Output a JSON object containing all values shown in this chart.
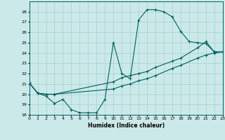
{
  "xlabel": "Humidex (Indice chaleur)",
  "background_color": "#cce9e9",
  "grid_color": "#aad4d4",
  "line_color": "#006060",
  "ylim": [
    18,
    29
  ],
  "xlim": [
    0,
    23
  ],
  "yticks": [
    18,
    19,
    20,
    21,
    22,
    23,
    24,
    25,
    26,
    27,
    28
  ],
  "xticks": [
    0,
    1,
    2,
    3,
    4,
    5,
    6,
    7,
    8,
    9,
    10,
    11,
    12,
    13,
    14,
    15,
    16,
    17,
    18,
    19,
    20,
    21,
    22,
    23
  ],
  "curve1_x": [
    0,
    1,
    2,
    3,
    4,
    5,
    6,
    7,
    8,
    9,
    10,
    11,
    12,
    13,
    14,
    15,
    16,
    17,
    18,
    19,
    20,
    21,
    22,
    23
  ],
  "curve1_y": [
    21.1,
    20.1,
    19.8,
    19.1,
    19.5,
    18.5,
    18.2,
    18.2,
    18.2,
    19.5,
    25.0,
    22.0,
    21.5,
    27.2,
    28.2,
    28.2,
    28.0,
    27.5,
    26.1,
    25.1,
    25.0,
    24.9,
    24.1,
    24.1
  ],
  "curve2_x": [
    0,
    1,
    2,
    3,
    10,
    11,
    12,
    13,
    14,
    15,
    17,
    18,
    20,
    21,
    22,
    23
  ],
  "curve2_y": [
    21.1,
    20.1,
    20.0,
    20.0,
    21.2,
    21.6,
    21.8,
    22.0,
    22.2,
    22.6,
    23.2,
    23.5,
    24.5,
    25.1,
    24.1,
    24.1
  ],
  "curve3_x": [
    0,
    1,
    2,
    3,
    10,
    11,
    12,
    13,
    14,
    15,
    17,
    18,
    20,
    21,
    22,
    23
  ],
  "curve3_y": [
    21.1,
    20.1,
    20.0,
    20.0,
    20.5,
    20.8,
    21.0,
    21.3,
    21.5,
    21.8,
    22.5,
    22.8,
    23.5,
    23.8,
    24.0,
    24.1
  ]
}
